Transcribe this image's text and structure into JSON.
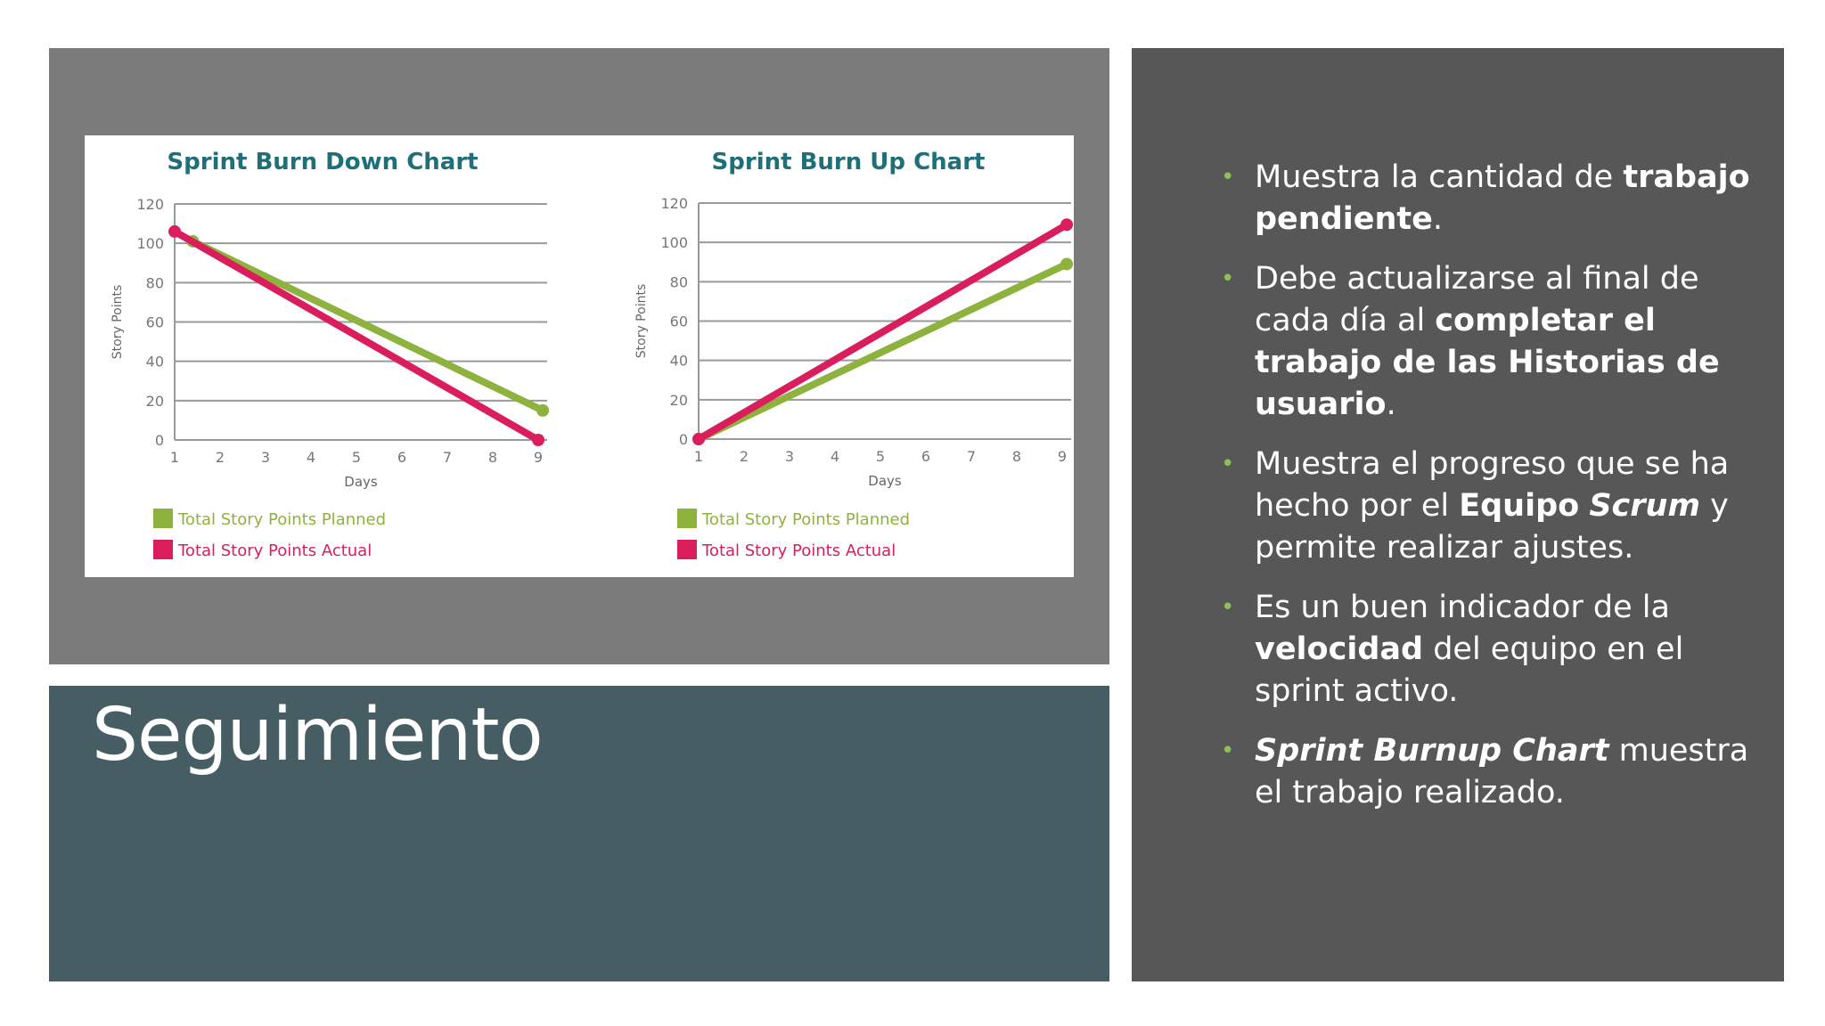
{
  "title": "Seguimiento",
  "colors": {
    "planned": "#8db33e",
    "actual": "#d91e5b",
    "title_text": "#1e6f78",
    "bullet": "#8fbf5a"
  },
  "bullets": [
    {
      "name": "bullet-trabajo-pendiente",
      "segments": [
        {
          "text": "Muestra la cantidad de "
        },
        {
          "text": "trabajo pendiente",
          "b": true
        },
        {
          "text": "."
        }
      ]
    },
    {
      "name": "bullet-actualizar",
      "segments": [
        {
          "text": "Debe actualizarse al final de cada día al "
        },
        {
          "text": "completar el trabajo de las Historias de usuario",
          "b": true
        },
        {
          "text": "."
        }
      ]
    },
    {
      "name": "bullet-progreso",
      "segments": [
        {
          "text": "Muestra el progreso que se ha hecho por el "
        },
        {
          "text": "Equipo",
          "b": true
        },
        {
          "text": " "
        },
        {
          "text": "Scrum",
          "b": true,
          "i": true
        },
        {
          "text": " y permite realizar ajustes."
        }
      ]
    },
    {
      "name": "bullet-velocidad",
      "segments": [
        {
          "text": "Es un buen indicador de la "
        },
        {
          "text": "velocidad",
          "b": true
        },
        {
          "text": " del equipo en el sprint activo."
        }
      ]
    },
    {
      "name": "bullet-burnup",
      "segments": [
        {
          "text": "Sprint Burnup Chart",
          "b": true,
          "i": true
        },
        {
          "text": " muestra el trabajo realizado."
        }
      ]
    }
  ],
  "chart_data": [
    {
      "type": "line",
      "title": "Sprint Burn Down Chart",
      "xlabel": "Days",
      "ylabel": "Story Points",
      "x": [
        1,
        2,
        3,
        4,
        5,
        6,
        7,
        8,
        9
      ],
      "xlim": [
        1,
        9
      ],
      "ylim": [
        0,
        120
      ],
      "yticks": [
        0,
        20,
        40,
        60,
        80,
        100,
        120
      ],
      "grid": true,
      "legend_position": "bottom-left",
      "series": [
        {
          "name": "Total Story Points Planned",
          "color": "#8db33e",
          "points": [
            [
              1.4,
              101
            ],
            [
              9.1,
              15
            ]
          ]
        },
        {
          "name": "Total Story Points Actual",
          "color": "#d91e5b",
          "points": [
            [
              1,
              106
            ],
            [
              9,
              0
            ]
          ]
        }
      ]
    },
    {
      "type": "line",
      "title": "Sprint Burn Up Chart",
      "xlabel": "Days",
      "ylabel": "Story Points",
      "x": [
        1,
        2,
        3,
        4,
        5,
        6,
        7,
        8,
        9
      ],
      "xlim": [
        1,
        9
      ],
      "ylim": [
        0,
        120
      ],
      "yticks": [
        0,
        20,
        40,
        60,
        80,
        100,
        120
      ],
      "grid": true,
      "legend_position": "bottom-left",
      "series": [
        {
          "name": "Total Story Points Planned",
          "color": "#8db33e",
          "points": [
            [
              1,
              0
            ],
            [
              9.1,
              89
            ]
          ]
        },
        {
          "name": "Total Story Points Actual",
          "color": "#d91e5b",
          "points": [
            [
              1,
              0
            ],
            [
              9.1,
              109
            ]
          ]
        }
      ]
    }
  ]
}
